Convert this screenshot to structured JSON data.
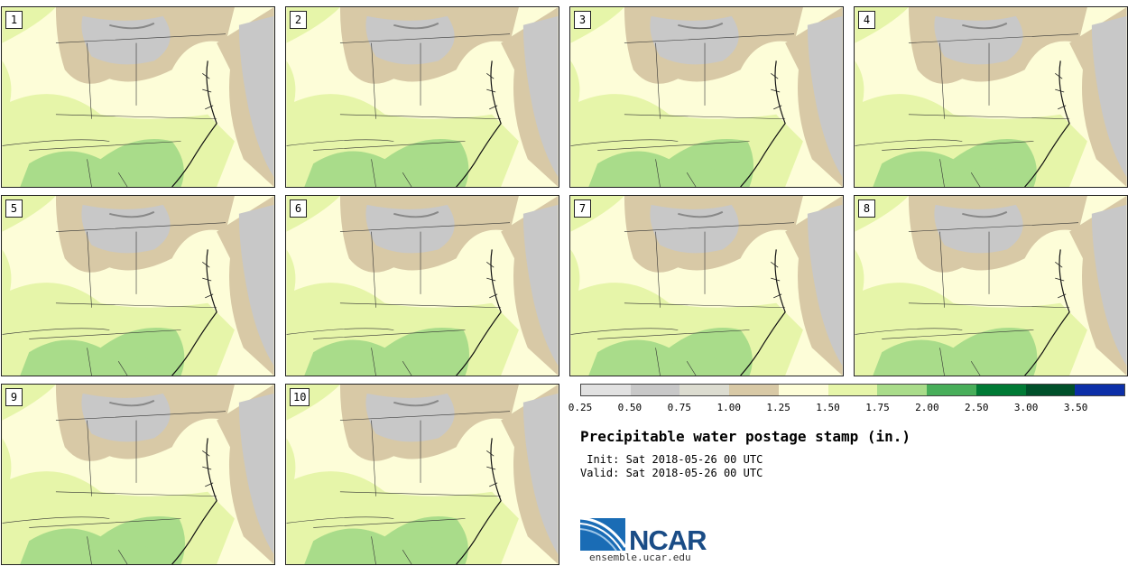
{
  "stamps": [
    {
      "label": "1",
      "col": 0,
      "row": 0
    },
    {
      "label": "2",
      "col": 1,
      "row": 0
    },
    {
      "label": "3",
      "col": 2,
      "row": 0
    },
    {
      "label": "4",
      "col": 3,
      "row": 0
    },
    {
      "label": "5",
      "col": 0,
      "row": 1
    },
    {
      "label": "6",
      "col": 1,
      "row": 1
    },
    {
      "label": "7",
      "col": 2,
      "row": 1
    },
    {
      "label": "8",
      "col": 3,
      "row": 1
    },
    {
      "label": "9",
      "col": 0,
      "row": 2
    },
    {
      "label": "10",
      "col": 1,
      "row": 2
    }
  ],
  "colorbar": {
    "colors": [
      "#e1e1e1",
      "#c8c8c8",
      "#dcdcd0",
      "#d8c9a6",
      "#fdfdd8",
      "#e6f5a9",
      "#a9dc8a",
      "#48ae5a",
      "#007a35",
      "#00502a",
      "#0c2fa8"
    ],
    "ticks": [
      "0.25",
      "0.50",
      "0.75",
      "1.00",
      "1.25",
      "1.50",
      "1.75",
      "2.00",
      "2.50",
      "3.00",
      "3.50"
    ]
  },
  "title": "Precipitable water postage stamp (in.)",
  "init_line": " Init: Sat 2018-05-26 00 UTC",
  "valid_line": "Valid: Sat 2018-05-26 00 UTC",
  "logo": {
    "text": "NCAR",
    "site": "ensemble.ucar.edu",
    "color": "#1a6cb5"
  }
}
